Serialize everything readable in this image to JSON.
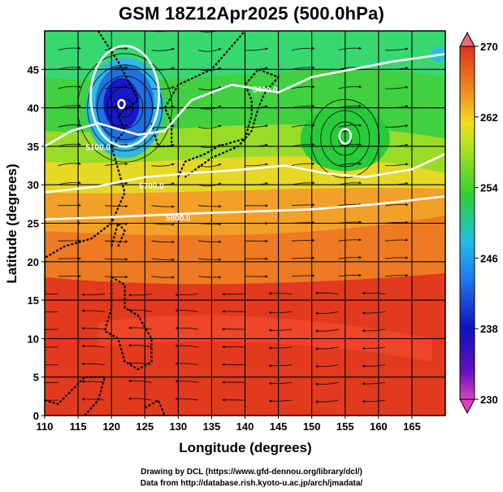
{
  "title": "GSM 18Z12Apr2025 (500.0hPa)",
  "credits": {
    "line1": "Drawing by DCL (https://www.gfd-dennou.org/library/dcl/)",
    "line2": "Data from http://database.rish.kyoto-u.ac.jp/arch/jmadata/"
  },
  "chart_data": {
    "type": "heatmap",
    "xlabel": "Longitude (degrees)",
    "ylabel": "Latitude  (degrees)",
    "xlim": [
      110,
      170
    ],
    "ylim": [
      0,
      50
    ],
    "x_ticks": [
      110,
      115,
      120,
      125,
      130,
      135,
      140,
      145,
      150,
      155,
      160,
      165
    ],
    "y_ticks": [
      0,
      5,
      10,
      15,
      20,
      25,
      30,
      35,
      40,
      45
    ],
    "grid": true,
    "colorbar": {
      "range": [
        230,
        270
      ],
      "ticks": [
        270,
        262,
        254,
        246,
        238,
        230
      ],
      "placement": "right"
    },
    "contour_labels": [
      "5100.0",
      "5400.0",
      "5700.0",
      "5800.0"
    ],
    "lows": [
      {
        "lon": 122,
        "lat": 40,
        "value": 238
      },
      {
        "lon": 155,
        "lat": 36,
        "value": 252
      }
    ],
    "colors": {
      "low_extreme": "#e040c0",
      "blue": "#1010c0",
      "cyan": "#20c0e0",
      "green": "#30d030",
      "yellow": "#f0e020",
      "orange": "#f08020",
      "red": "#e03020",
      "high_extreme": "#f06080"
    }
  }
}
